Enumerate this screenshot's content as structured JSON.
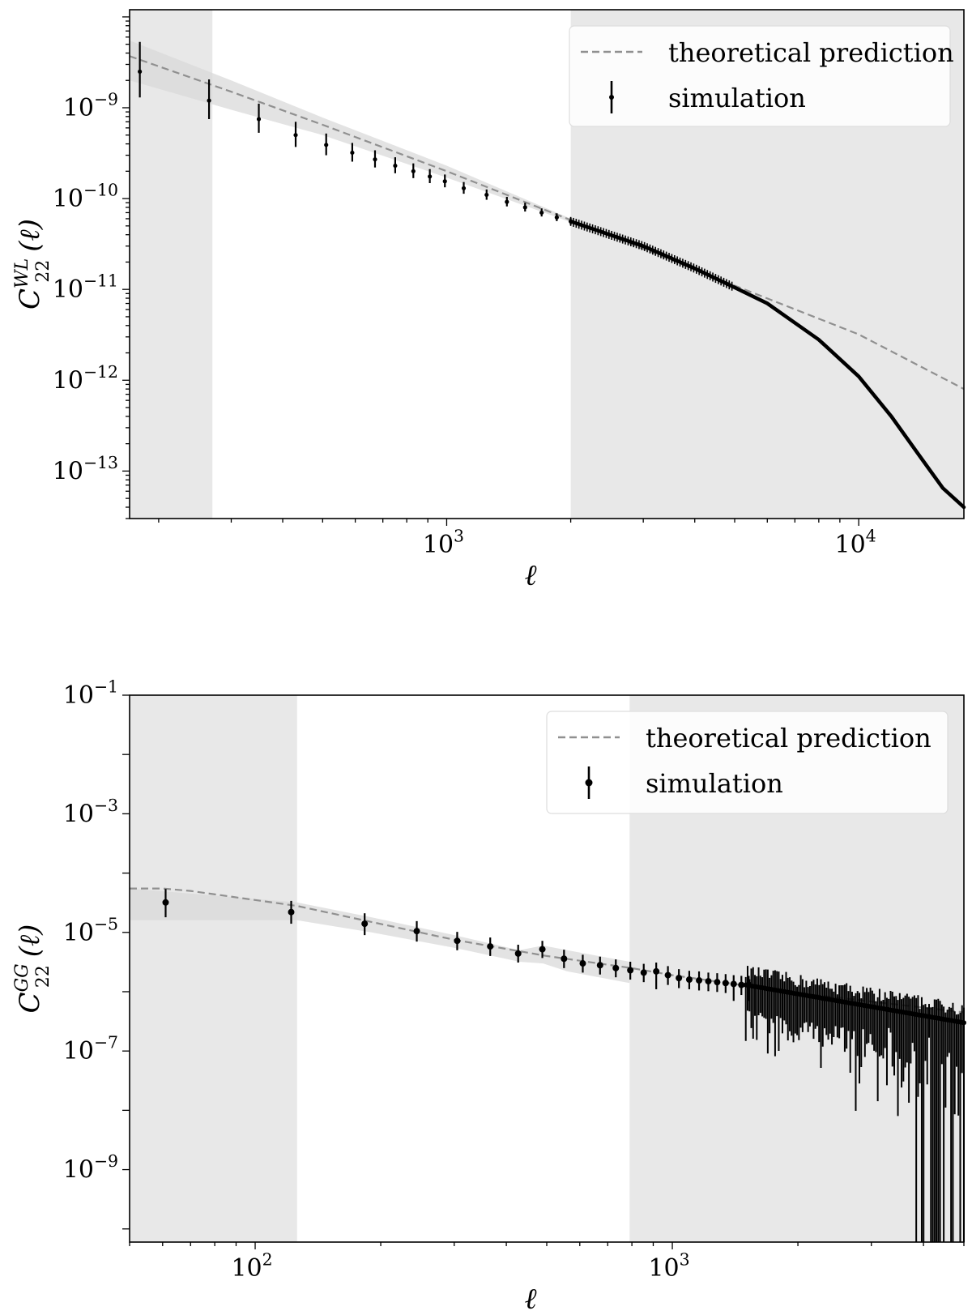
{
  "colors": {
    "shade_outer": "#e8e8e8",
    "band": "#d9d9d9",
    "theory_line": "#909090",
    "points": "#000000",
    "frame": "#000000",
    "legend_bg": "#ffffff",
    "legend_border": "#dddddd"
  },
  "chart_data": [
    {
      "type": "scatter",
      "scale": "log-log",
      "xlabel": "ℓ",
      "ylabel": {
        "base": "C",
        "sub": "22",
        "sup": "WL",
        "tail": "(ℓ)"
      },
      "xlim": [
        170,
        18000
      ],
      "ylim": [
        3e-14,
        1.2e-08
      ],
      "x_ticks": [
        {
          "value": 1000,
          "base": "10",
          "exp": "3"
        },
        {
          "value": 10000,
          "base": "10",
          "exp": "4"
        }
      ],
      "y_ticks": [
        {
          "value": 1e-09,
          "base": "10",
          "exp": "−9"
        },
        {
          "value": 1e-10,
          "base": "10",
          "exp": "−10"
        },
        {
          "value": 1e-11,
          "base": "10",
          "exp": "−11"
        },
        {
          "value": 1e-12,
          "base": "10",
          "exp": "−12"
        },
        {
          "value": 1e-13,
          "base": "10",
          "exp": "−13"
        }
      ],
      "shaded_x_ranges": [
        [
          170,
          270
        ],
        [
          2000,
          18000
        ]
      ],
      "legend": {
        "position": "top-right",
        "entries": [
          "theoretical prediction",
          "simulation"
        ]
      },
      "series": [
        {
          "name": "theoretical prediction",
          "kind": "dashed-line",
          "x": [
            170,
            300,
            500,
            1000,
            2000,
            3000,
            5000,
            10000,
            18000
          ],
          "y": [
            3.7e-09,
            1.5e-09,
            6.5e-10,
            2e-10,
            5.8e-11,
            2.8e-11,
            1.1e-11,
            3.2e-12,
            8e-13
          ]
        },
        {
          "name": "uncertainty band",
          "kind": "band",
          "x": [
            170,
            300,
            500,
            1000,
            2000
          ],
          "y_low": [
            2e-09,
            9.5e-10,
            5e-10,
            1.7e-10,
            5.5e-11
          ],
          "y_high": [
            5.5e-09,
            2e-09,
            7.8e-10,
            2.3e-10,
            6e-11
          ]
        },
        {
          "name": "simulation",
          "kind": "points-with-errorbars",
          "x": [
            180,
            265,
            350,
            430,
            510,
            590,
            670,
            750,
            830,
            910,
            990,
            1100,
            1250,
            1400,
            1550,
            1700,
            1850,
            2000
          ],
          "y": [
            2.5e-09,
            1.2e-09,
            7.5e-10,
            5e-10,
            3.9e-10,
            3.2e-10,
            2.7e-10,
            2.3e-10,
            2e-10,
            1.75e-10,
            1.55e-10,
            1.3e-10,
            1.1e-10,
            9.2e-11,
            8e-11,
            7e-11,
            6.2e-11,
            5.6e-11
          ],
          "y_err_low": [
            1.2e-09,
            4.5e-10,
            2.2e-10,
            1.3e-10,
            9e-11,
            6.5e-11,
            5e-11,
            4e-11,
            3.2e-11,
            2.7e-11,
            2.2e-11,
            1.7e-11,
            1.3e-11,
            1e-11,
            8e-12,
            6.5e-12,
            5.5e-12,
            4.6e-12
          ],
          "y_err_high": [
            2.8e-09,
            8.5e-10,
            3.6e-10,
            2e-10,
            1.3e-10,
            9e-11,
            7e-11,
            5.5e-11,
            4.4e-11,
            3.6e-11,
            2.9e-11,
            2.2e-11,
            1.6e-11,
            1.25e-11,
            1e-11,
            8e-12,
            6.8e-12,
            5.6e-12
          ]
        },
        {
          "name": "simulation (dense)",
          "kind": "thick-curve",
          "x": [
            2000,
            3000,
            4000,
            5000,
            6000,
            8000,
            10000,
            12000,
            14000,
            16000,
            18000
          ],
          "y": [
            5.6e-11,
            3e-11,
            1.7e-11,
            1.05e-11,
            7e-12,
            2.8e-12,
            1.1e-12,
            4e-13,
            1.5e-13,
            6.5e-14,
            4e-14
          ]
        }
      ]
    },
    {
      "type": "scatter",
      "scale": "log-log",
      "xlabel": "ℓ",
      "ylabel": {
        "base": "C",
        "sub": "22",
        "sup": "GG",
        "tail": "(ℓ)"
      },
      "xlim": [
        50,
        5000
      ],
      "ylim": [
        6e-11,
        0.1
      ],
      "x_ticks": [
        {
          "value": 100,
          "base": "10",
          "exp": "2"
        },
        {
          "value": 1000,
          "base": "10",
          "exp": "3"
        }
      ],
      "y_ticks": [
        {
          "value": 0.1,
          "base": "10",
          "exp": "−1"
        },
        {
          "value": 0.001,
          "base": "10",
          "exp": "−3"
        },
        {
          "value": 1e-05,
          "base": "10",
          "exp": "−5"
        },
        {
          "value": 1e-07,
          "base": "10",
          "exp": "−7"
        },
        {
          "value": 1e-09,
          "base": "10",
          "exp": "−9"
        }
      ],
      "shaded_x_ranges": [
        [
          50,
          126
        ],
        [
          790,
          5000
        ]
      ],
      "legend": {
        "position": "top-right",
        "entries": [
          "theoretical prediction",
          "simulation"
        ]
      },
      "series": [
        {
          "name": "theoretical prediction",
          "kind": "dashed-line",
          "x": [
            50,
            60,
            70,
            126,
            190,
            300,
            500,
            800,
            1000,
            2000,
            5000
          ],
          "y": [
            5.5e-05,
            5.5e-05,
            5e-05,
            2.8e-05,
            1.5e-05,
            7.5e-06,
            4e-06,
            2.5e-06,
            1.9e-06,
            9.5e-07,
            4.5e-07
          ]
        },
        {
          "name": "uncertainty band",
          "kind": "band",
          "x": [
            50,
            126,
            190,
            300,
            430,
            490,
            560,
            790
          ],
          "y_low": [
            1.6e-05,
            1.6e-05,
            1e-05,
            5.5e-06,
            3.2e-06,
            3e-06,
            2.2e-06,
            1.4e-06
          ],
          "y_high": [
            5.5e-05,
            3.2e-05,
            1.8e-05,
            9e-06,
            5e-06,
            6e-06,
            5e-06,
            3.2e-06
          ]
        },
        {
          "name": "simulation",
          "kind": "points-with-errorbars",
          "x": [
            61,
            122,
            183,
            244,
            305,
            366,
            427,
            488,
            550,
            610,
            671,
            732,
            793,
            854,
            915,
            976,
            1037,
            1098,
            1159,
            1220,
            1281,
            1342,
            1403,
            1464,
            1525
          ],
          "y": [
            3.2e-05,
            2.2e-05,
            1.4e-05,
            1.05e-05,
            7.2e-06,
            5.8e-06,
            4.4e-06,
            5.2e-06,
            3.6e-06,
            3e-06,
            2.8e-06,
            2.5e-06,
            2.3e-06,
            2.1e-06,
            2.2e-06,
            1.9e-06,
            1.7e-06,
            1.6e-06,
            1.55e-06,
            1.5e-06,
            1.45e-06,
            1.4e-06,
            1.35e-06,
            1.3e-06,
            1.3e-06
          ],
          "y_err_low": [
            1.4e-05,
            8e-06,
            5e-06,
            3.5e-06,
            2.2e-06,
            1.8e-06,
            1.3e-06,
            1.5e-06,
            1.1e-06,
            9e-07,
            8.5e-07,
            7.5e-07,
            7e-07,
            6.5e-07,
            1.1e-06,
            6e-07,
            5.5e-07,
            5e-07,
            5e-07,
            4.8e-07,
            4.6e-07,
            4.5e-07,
            6.5e-07,
            4.2e-07,
            6e-07
          ],
          "y_err_high": [
            2.2e-05,
            1.2e-05,
            7e-06,
            5e-06,
            3e-06,
            2.4e-06,
            1.8e-06,
            2e-06,
            1.5e-06,
            1.2e-06,
            1.1e-06,
            1e-06,
            9e-07,
            8.5e-07,
            9e-07,
            8e-07,
            7e-07,
            6.5e-07,
            6.5e-07,
            6e-07,
            6e-07,
            5.8e-07,
            5.5e-07,
            5.5e-07,
            5.5e-07
          ]
        },
        {
          "name": "simulation (noisy tail)",
          "kind": "noisy-errorbars",
          "x_start": 1500,
          "x_end": 5000,
          "y_center_start": 1.3e-06,
          "y_center_end": 3e-07,
          "err_scale": 0.9,
          "count": 120
        }
      ]
    }
  ]
}
